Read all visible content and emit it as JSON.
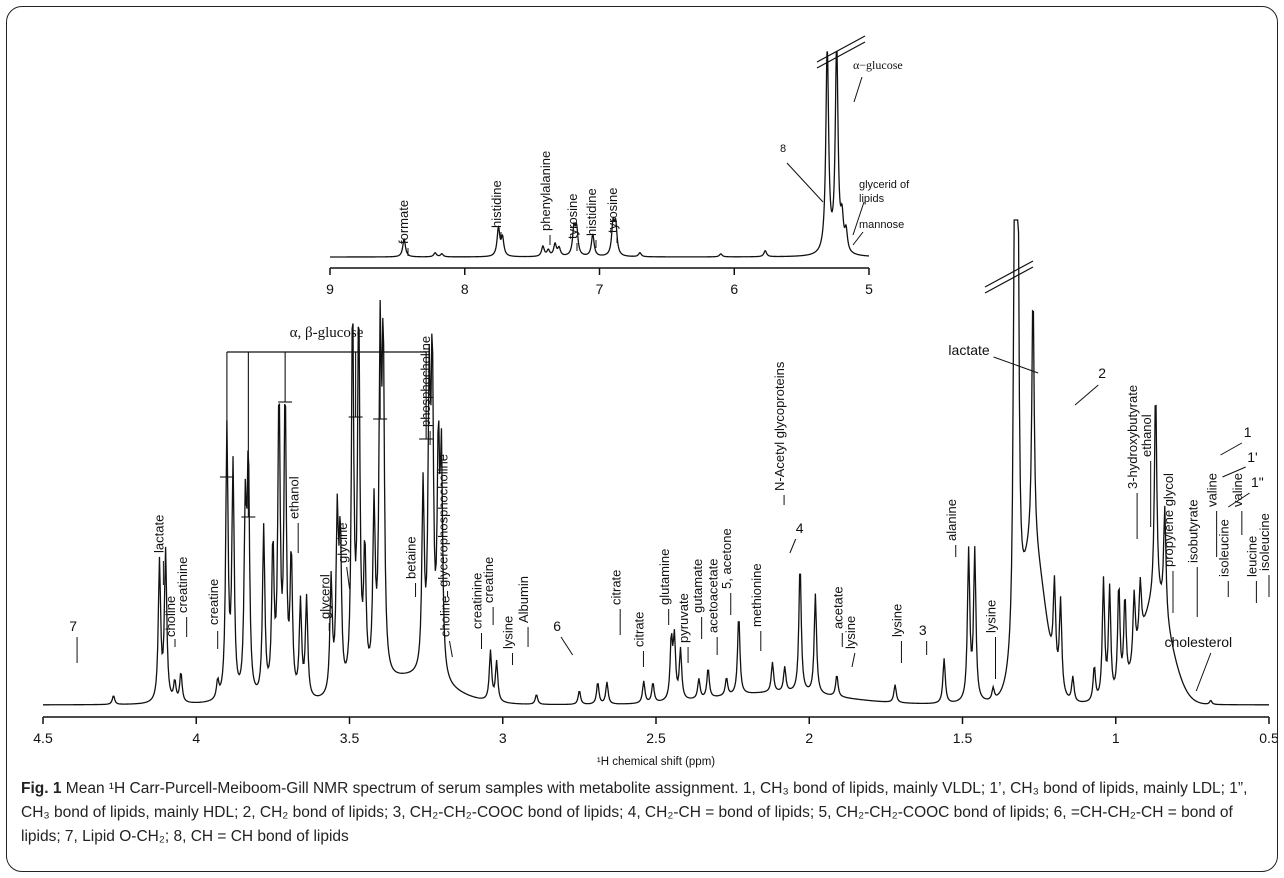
{
  "chart_data": [
    {
      "type": "line",
      "panel": "inset",
      "xlabel": "",
      "xlim": [
        9,
        5
      ],
      "xticks": [
        "9",
        "8",
        "7",
        "6",
        "5"
      ],
      "peaks": [
        {
          "ppm": 8.45,
          "h": 18
        },
        {
          "ppm": 8.22,
          "h": 4
        },
        {
          "ppm": 8.17,
          "h": 3
        },
        {
          "ppm": 7.75,
          "h": 28
        },
        {
          "ppm": 7.72,
          "h": 18
        },
        {
          "ppm": 7.42,
          "h": 10
        },
        {
          "ppm": 7.38,
          "h": 6
        },
        {
          "ppm": 7.33,
          "h": 12
        },
        {
          "ppm": 7.3,
          "h": 8
        },
        {
          "ppm": 7.19,
          "h": 26
        },
        {
          "ppm": 7.17,
          "h": 26
        },
        {
          "ppm": 7.05,
          "h": 22
        },
        {
          "ppm": 6.9,
          "h": 30
        },
        {
          "ppm": 6.88,
          "h": 30
        },
        {
          "ppm": 6.7,
          "h": 4
        },
        {
          "ppm": 6.1,
          "h": 3
        },
        {
          "ppm": 5.77,
          "h": 6
        },
        {
          "ppm": 5.31,
          "h": 210
        },
        {
          "ppm": 5.24,
          "h": 210
        },
        {
          "ppm": 5.2,
          "h": 30
        },
        {
          "ppm": 5.17,
          "h": 20
        }
      ],
      "annotations": [
        {
          "label": "formate",
          "ppm": 8.45
        },
        {
          "label": "histidine",
          "ppm": 7.75
        },
        {
          "label": "phenylalanine",
          "ppm": 7.4
        },
        {
          "label": "tyrosine",
          "ppm": 7.18
        },
        {
          "label": "histidine",
          "ppm": 7.05
        },
        {
          "label": "tyrosine",
          "ppm": 6.89
        },
        {
          "label": "8",
          "ppm": 5.31
        },
        {
          "label": "α−glucose",
          "ppm": 5.24
        },
        {
          "label": "glycerid of",
          "ppm": 5.2
        },
        {
          "label": "lipids",
          "ppm": 5.2
        },
        {
          "label": "mannose",
          "ppm": 5.17
        }
      ]
    },
    {
      "type": "line",
      "panel": "main",
      "xlabel": "¹H chemical shift (ppm)",
      "xlim": [
        4.5,
        0.5
      ],
      "xticks": [
        "4.5",
        "4",
        "3.5",
        "3",
        "2.5",
        "2",
        "1.5",
        "1",
        "0.5"
      ],
      "peaks": [
        {
          "ppm": 4.27,
          "h": 9
        },
        {
          "ppm": 4.12,
          "h": 140
        },
        {
          "ppm": 4.1,
          "h": 150
        },
        {
          "ppm": 4.07,
          "h": 20
        },
        {
          "ppm": 4.05,
          "h": 30
        },
        {
          "ppm": 3.93,
          "h": 18
        },
        {
          "ppm": 3.9,
          "h": 270
        },
        {
          "ppm": 3.88,
          "h": 230
        },
        {
          "ppm": 3.84,
          "h": 180
        },
        {
          "ppm": 3.83,
          "h": 230
        },
        {
          "ppm": 3.78,
          "h": 170
        },
        {
          "ppm": 3.75,
          "h": 150
        },
        {
          "ppm": 3.73,
          "h": 300
        },
        {
          "ppm": 3.71,
          "h": 300
        },
        {
          "ppm": 3.69,
          "h": 140
        },
        {
          "ppm": 3.66,
          "h": 95
        },
        {
          "ppm": 3.64,
          "h": 100
        },
        {
          "ppm": 3.56,
          "h": 115
        },
        {
          "ppm": 3.54,
          "h": 170
        },
        {
          "ppm": 3.53,
          "h": 150
        },
        {
          "ppm": 3.49,
          "h": 380
        },
        {
          "ppm": 3.47,
          "h": 370
        },
        {
          "ppm": 3.45,
          "h": 130
        },
        {
          "ppm": 3.42,
          "h": 170
        },
        {
          "ppm": 3.4,
          "h": 320
        },
        {
          "ppm": 3.39,
          "h": 320
        },
        {
          "ppm": 3.26,
          "h": 185
        },
        {
          "ppm": 3.24,
          "h": 270
        },
        {
          "ppm": 3.23,
          "h": 300
        },
        {
          "ppm": 3.21,
          "h": 220
        },
        {
          "ppm": 3.2,
          "h": 210
        },
        {
          "ppm": 3.04,
          "h": 50
        },
        {
          "ppm": 3.02,
          "h": 40
        },
        {
          "ppm": 2.89,
          "h": 10
        },
        {
          "ppm": 2.75,
          "h": 14
        },
        {
          "ppm": 2.69,
          "h": 22
        },
        {
          "ppm": 2.66,
          "h": 22
        },
        {
          "ppm": 2.54,
          "h": 22
        },
        {
          "ppm": 2.51,
          "h": 20
        },
        {
          "ppm": 2.45,
          "h": 60
        },
        {
          "ppm": 2.44,
          "h": 60
        },
        {
          "ppm": 2.42,
          "h": 50
        },
        {
          "ppm": 2.36,
          "h": 20
        },
        {
          "ppm": 2.33,
          "h": 30
        },
        {
          "ppm": 2.27,
          "h": 18
        },
        {
          "ppm": 2.23,
          "h": 80
        },
        {
          "ppm": 2.12,
          "h": 30
        },
        {
          "ppm": 2.08,
          "h": 25
        },
        {
          "ppm": 2.03,
          "h": 130
        },
        {
          "ppm": 1.98,
          "h": 100
        },
        {
          "ppm": 1.91,
          "h": 22
        },
        {
          "ppm": 1.72,
          "h": 18
        },
        {
          "ppm": 1.56,
          "h": 45
        },
        {
          "ppm": 1.48,
          "h": 150
        },
        {
          "ppm": 1.46,
          "h": 150
        },
        {
          "ppm": 1.4,
          "h": 12
        },
        {
          "ppm": 1.33,
          "h": 480
        },
        {
          "ppm": 1.32,
          "h": 480
        },
        {
          "ppm": 1.27,
          "h": 260
        },
        {
          "ppm": 1.2,
          "h": 90
        },
        {
          "ppm": 1.18,
          "h": 90
        },
        {
          "ppm": 1.14,
          "h": 25
        },
        {
          "ppm": 1.07,
          "h": 35
        },
        {
          "ppm": 1.04,
          "h": 120
        },
        {
          "ppm": 1.02,
          "h": 110
        },
        {
          "ppm": 0.99,
          "h": 110
        },
        {
          "ppm": 0.97,
          "h": 90
        },
        {
          "ppm": 0.94,
          "h": 70
        },
        {
          "ppm": 0.92,
          "h": 60
        },
        {
          "ppm": 0.87,
          "h": 215
        },
        {
          "ppm": 0.84,
          "h": 110
        },
        {
          "ppm": 0.69,
          "h": 4
        }
      ],
      "glucose_bracket": {
        "label": "α, β-glucose",
        "ppm": [
          3.9,
          3.83,
          3.71,
          3.48,
          3.4,
          3.25
        ]
      },
      "annotations": [
        {
          "label": "7",
          "ppm": 4.27
        },
        {
          "label": "lactate",
          "ppm": 4.11
        },
        {
          "label": "choline",
          "ppm": 4.07
        },
        {
          "label": "creatinine",
          "ppm": 4.05
        },
        {
          "label": "creatine",
          "ppm": 3.93
        },
        {
          "label": "ethanol",
          "ppm": 3.65
        },
        {
          "label": "glycerol",
          "ppm": 3.61
        },
        {
          "label": "glycine",
          "ppm": 3.56
        },
        {
          "label": "betaine",
          "ppm": 3.27
        },
        {
          "label": "phosphocholine",
          "ppm": 3.22
        },
        {
          "label": "glycerophosphocholine",
          "ppm": 3.21
        },
        {
          "label": "choline",
          "ppm": 3.2
        },
        {
          "label": "creatinine",
          "ppm": 3.05
        },
        {
          "label": "creatine",
          "ppm": 3.03
        },
        {
          "label": "lysine",
          "ppm": 3.01
        },
        {
          "label": "Albumin",
          "ppm": 2.89
        },
        {
          "label": "6",
          "ppm": 2.75
        },
        {
          "label": "citrate",
          "ppm": 2.68
        },
        {
          "label": "citrate",
          "ppm": 2.52
        },
        {
          "label": "glutamine",
          "ppm": 2.44
        },
        {
          "label": "pyruvate",
          "ppm": 2.37
        },
        {
          "label": "gutamate",
          "ppm": 2.34
        },
        {
          "label": "acetoacetate",
          "ppm": 2.28
        },
        {
          "label": "5, acetone",
          "ppm": 2.23
        },
        {
          "label": "methionine",
          "ppm": 2.12
        },
        {
          "label": "N-Acetyl glycoproteins",
          "ppm": 2.03
        },
        {
          "label": "4",
          "ppm": 1.98
        },
        {
          "label": "acetate",
          "ppm": 1.91
        },
        {
          "label": "lysine",
          "ppm": 1.89
        },
        {
          "label": "lysine",
          "ppm": 1.72
        },
        {
          "label": "3",
          "ppm": 1.56
        },
        {
          "label": "alanine",
          "ppm": 1.47
        },
        {
          "label": "lysine",
          "ppm": 1.41
        },
        {
          "label": "lactate",
          "ppm": 1.33
        },
        {
          "label": "2",
          "ppm": 1.27
        },
        {
          "label": "3-hydroxybutyrate",
          "ppm": 1.2
        },
        {
          "label": "ethanol",
          "ppm": 1.18
        },
        {
          "label": "propylene glycol",
          "ppm": 1.14
        },
        {
          "label": "isobutyrate",
          "ppm": 1.07
        },
        {
          "label": "valine",
          "ppm": 1.04
        },
        {
          "label": "isoleucine",
          "ppm": 1.01
        },
        {
          "label": "valine",
          "ppm": 0.99
        },
        {
          "label": "leucine",
          "ppm": 0.96
        },
        {
          "label": "isoleucine",
          "ppm": 0.94
        },
        {
          "label": "1",
          "ppm": 0.87
        },
        {
          "label": "1'",
          "ppm": 0.85
        },
        {
          "label": "1\"",
          "ppm": 0.84
        },
        {
          "label": "cholesterol",
          "ppm": 0.69
        }
      ]
    }
  ],
  "caption": {
    "fig": "Fig. 1",
    "text": "Mean ¹H Carr-Purcell-Meiboom-Gill NMR spectrum of serum samples with metabolite assignment. 1, CH₃ bond of lipids, mainly VLDL; 1’, CH₃ bond of lipids, mainly LDL; 1”, CH₃ bond of lipids, mainly HDL; 2, CH₂ bond of lipids; 3, CH₂-CH₂-COOC bond of lipids; 4, CH₂-CH = bond of lipids; 5, CH₂-CH₂-COOC bond of lipids; 6, =CH-CH₂-CH = bond of lipids; 7, Lipid O-CH₂; 8, CH = CH bond of lipids"
  }
}
